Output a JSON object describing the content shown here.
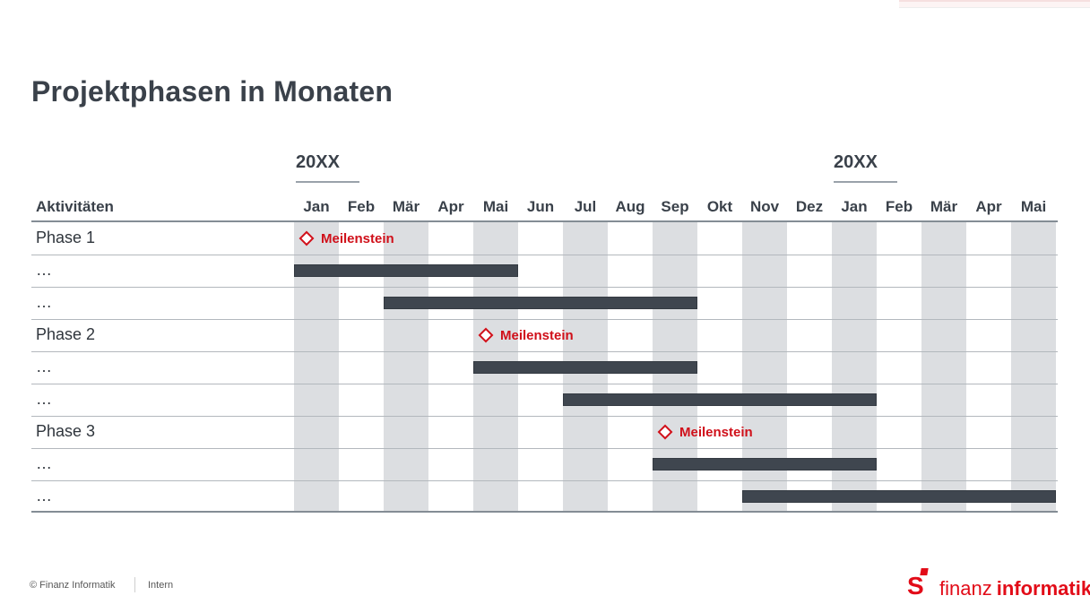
{
  "page": {
    "title": "Projektphasen in Monaten"
  },
  "colors": {
    "text_dark": "#3a414a",
    "accent_red": "#d0101a",
    "logo_red": "#e20c18",
    "bar": "#3f464f",
    "stripe": "#dcdee1",
    "grid_strong": "#848d95",
    "grid_light": "#b3b8bd"
  },
  "chart_data": {
    "type": "gantt",
    "title": "Projektphasen in Monaten",
    "activities_header": "Aktivitäten",
    "years": [
      {
        "label": "20XX",
        "start_month_index": 0
      },
      {
        "label": "20XX",
        "start_month_index": 12
      }
    ],
    "months": [
      "Jan",
      "Feb",
      "Mär",
      "Apr",
      "Mai",
      "Jun",
      "Jul",
      "Aug",
      "Sep",
      "Okt",
      "Nov",
      "Dez",
      "Jan",
      "Feb",
      "Mär",
      "Apr",
      "Mai"
    ],
    "striped_month_indices": [
      0,
      2,
      4,
      6,
      8,
      10,
      12,
      14,
      16
    ],
    "rows": [
      {
        "label": "Phase 1",
        "type": "milestone",
        "milestone_month_index": 0,
        "milestone_label": "Meilenstein"
      },
      {
        "label": "…",
        "type": "bar",
        "start_month_index": 0,
        "end_month_index": 4
      },
      {
        "label": "…",
        "type": "bar",
        "start_month_index": 2,
        "end_month_index": 8
      },
      {
        "label": "Phase 2",
        "type": "milestone",
        "milestone_month_index": 4,
        "milestone_label": "Meilenstein"
      },
      {
        "label": "…",
        "type": "bar",
        "start_month_index": 4,
        "end_month_index": 8
      },
      {
        "label": "…",
        "type": "bar",
        "start_month_index": 6,
        "end_month_index": 12
      },
      {
        "label": "Phase 3",
        "type": "milestone",
        "milestone_month_index": 8,
        "milestone_label": "Meilenstein"
      },
      {
        "label": "…",
        "type": "bar",
        "start_month_index": 8,
        "end_month_index": 12
      },
      {
        "label": "…",
        "type": "bar",
        "start_month_index": 10,
        "end_month_index": 16
      }
    ]
  },
  "footer": {
    "copyright": "© Finanz Informatik",
    "classification": "Intern",
    "logo": {
      "symbol": "S",
      "text_regular": "finanz",
      "text_bold": "informatik"
    }
  }
}
